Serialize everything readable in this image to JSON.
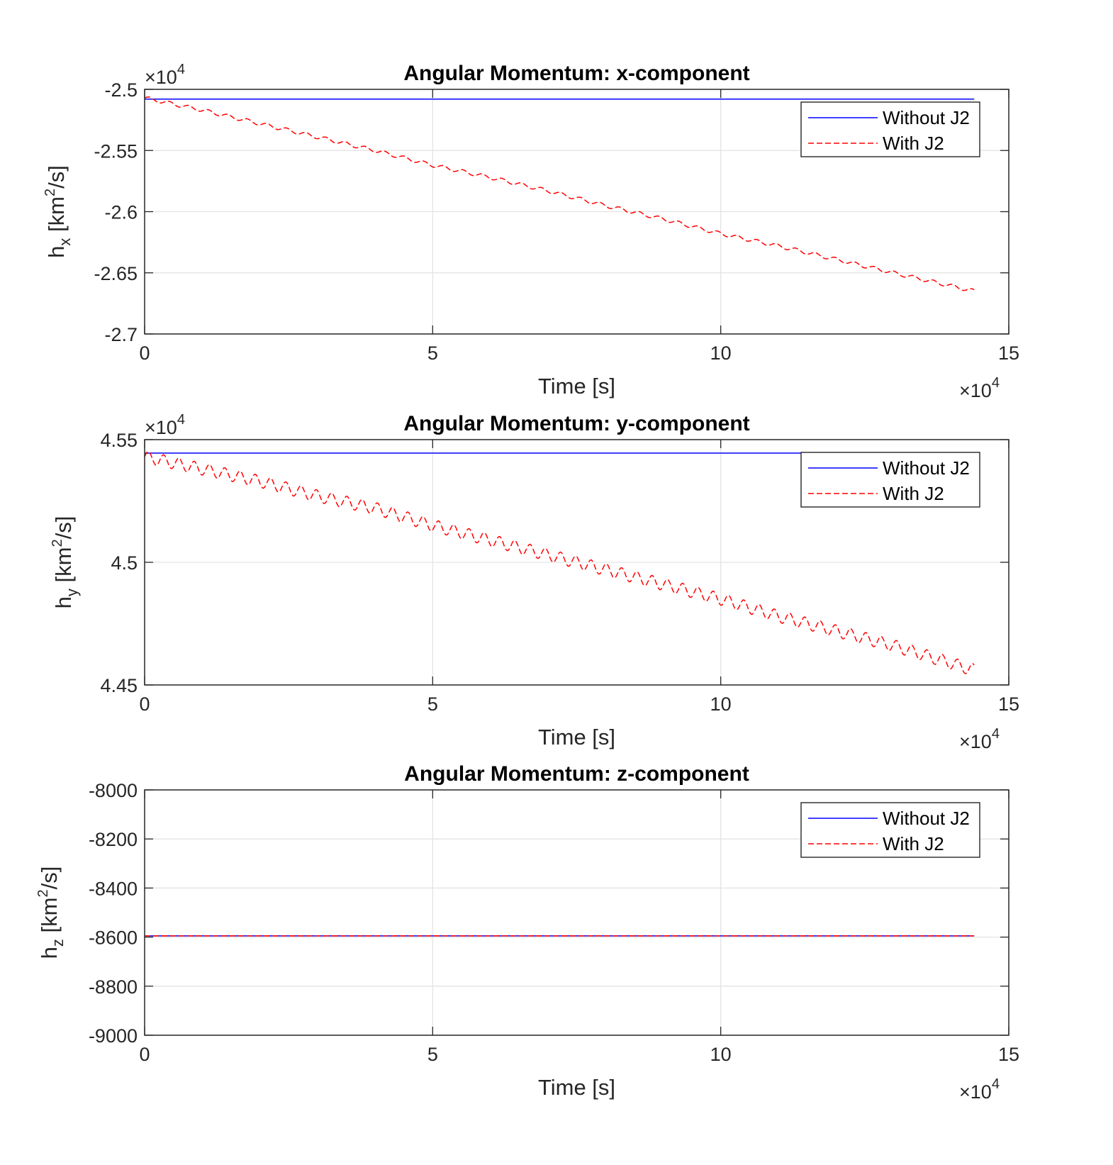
{
  "chart_data": [
    {
      "type": "line",
      "title": "Angular Momentum: x-component",
      "xlabel": "Time [s]",
      "ylabel_main": "h",
      "ylabel_sub": "x",
      "ylabel_unit_pre": " [km",
      "ylabel_unit_sup": "2",
      "ylabel_unit_post": "/s]",
      "x_multiplier_base": "×10",
      "x_multiplier_exp": "4",
      "y_multiplier_base": "×10",
      "y_multiplier_exp": "4",
      "xlim": [
        0,
        150000
      ],
      "ylim": [
        -27000,
        -25000
      ],
      "xticks": [
        0,
        50000,
        100000,
        150000
      ],
      "xtick_labels": [
        "0",
        "5",
        "10",
        "15"
      ],
      "yticks": [
        -27000,
        -26500,
        -26000,
        -25500,
        -25000
      ],
      "ytick_labels": [
        "-2.7",
        "-2.65",
        "-2.6",
        "-2.55",
        "-2.5"
      ],
      "grid": true,
      "legend_position": "top-right",
      "series": [
        {
          "name": "Without J2",
          "color": "#0000ff",
          "style": "solid",
          "x": [
            0,
            144000
          ],
          "y": [
            -25080,
            -25080
          ]
        },
        {
          "name": "With J2",
          "color": "#ff0000",
          "style": "dashed",
          "x": [
            0,
            10000,
            20000,
            30000,
            40000,
            50000,
            60000,
            70000,
            80000,
            90000,
            100000,
            110000,
            120000,
            130000,
            144000
          ],
          "y": [
            -25070,
            -25170,
            -25280,
            -25390,
            -25500,
            -25620,
            -25720,
            -25830,
            -25950,
            -26060,
            -26180,
            -26280,
            -26390,
            -26500,
            -26650
          ],
          "oscillation_amplitude": 15,
          "oscillation_period": 3400
        }
      ]
    },
    {
      "type": "line",
      "title": "Angular Momentum: y-component",
      "xlabel": "Time [s]",
      "ylabel_main": "h",
      "ylabel_sub": "y",
      "ylabel_unit_pre": " [km",
      "ylabel_unit_sup": "2",
      "ylabel_unit_post": "/s]",
      "x_multiplier_base": "×10",
      "x_multiplier_exp": "4",
      "y_multiplier_base": "×10",
      "y_multiplier_exp": "4",
      "xlim": [
        0,
        150000
      ],
      "ylim": [
        44500,
        45500
      ],
      "xticks": [
        0,
        50000,
        100000,
        150000
      ],
      "xtick_labels": [
        "0",
        "5",
        "10",
        "15"
      ],
      "yticks": [
        44500,
        45000,
        45500
      ],
      "ytick_labels": [
        "4.45",
        "4.5",
        "4.55"
      ],
      "grid": true,
      "legend_position": "top-right",
      "series": [
        {
          "name": "Without J2",
          "color": "#0000ff",
          "style": "solid",
          "x": [
            0,
            144000
          ],
          "y": [
            45445,
            45445
          ]
        },
        {
          "name": "With J2",
          "color": "#ff0000",
          "style": "dashed",
          "x": [
            0,
            10000,
            20000,
            30000,
            40000,
            50000,
            60000,
            70000,
            80000,
            90000,
            100000,
            110000,
            120000,
            130000,
            144000
          ],
          "y": [
            45430,
            45380,
            45330,
            45270,
            45220,
            45150,
            45090,
            45030,
            44970,
            44910,
            44850,
            44780,
            44720,
            44660,
            44560
          ],
          "oscillation_amplitude": 25,
          "oscillation_period": 2650
        }
      ]
    },
    {
      "type": "line",
      "title": "Angular Momentum: z-component",
      "xlabel": "Time [s]",
      "ylabel_main": "h",
      "ylabel_sub": "z",
      "ylabel_unit_pre": " [km",
      "ylabel_unit_sup": "2",
      "ylabel_unit_post": "/s]",
      "x_multiplier_base": "×10",
      "x_multiplier_exp": "4",
      "y_multiplier_base": "",
      "y_multiplier_exp": "",
      "xlim": [
        0,
        150000
      ],
      "ylim": [
        -9000,
        -8000
      ],
      "xticks": [
        0,
        50000,
        100000,
        150000
      ],
      "xtick_labels": [
        "0",
        "5",
        "10",
        "15"
      ],
      "yticks": [
        -9000,
        -8800,
        -8600,
        -8400,
        -8200,
        -8000
      ],
      "ytick_labels": [
        "-9000",
        "-8800",
        "-8600",
        "-8400",
        "-8200",
        "-8000"
      ],
      "grid": true,
      "legend_position": "top-right",
      "series": [
        {
          "name": "Without J2",
          "color": "#0000ff",
          "style": "solid",
          "x": [
            0,
            144000
          ],
          "y": [
            -8595,
            -8595
          ]
        },
        {
          "name": "With J2",
          "color": "#ff0000",
          "style": "dashed",
          "x": [
            0,
            144000
          ],
          "y": [
            -8595,
            -8595
          ],
          "oscillation_amplitude": 0,
          "oscillation_period": 3000
        }
      ]
    }
  ]
}
